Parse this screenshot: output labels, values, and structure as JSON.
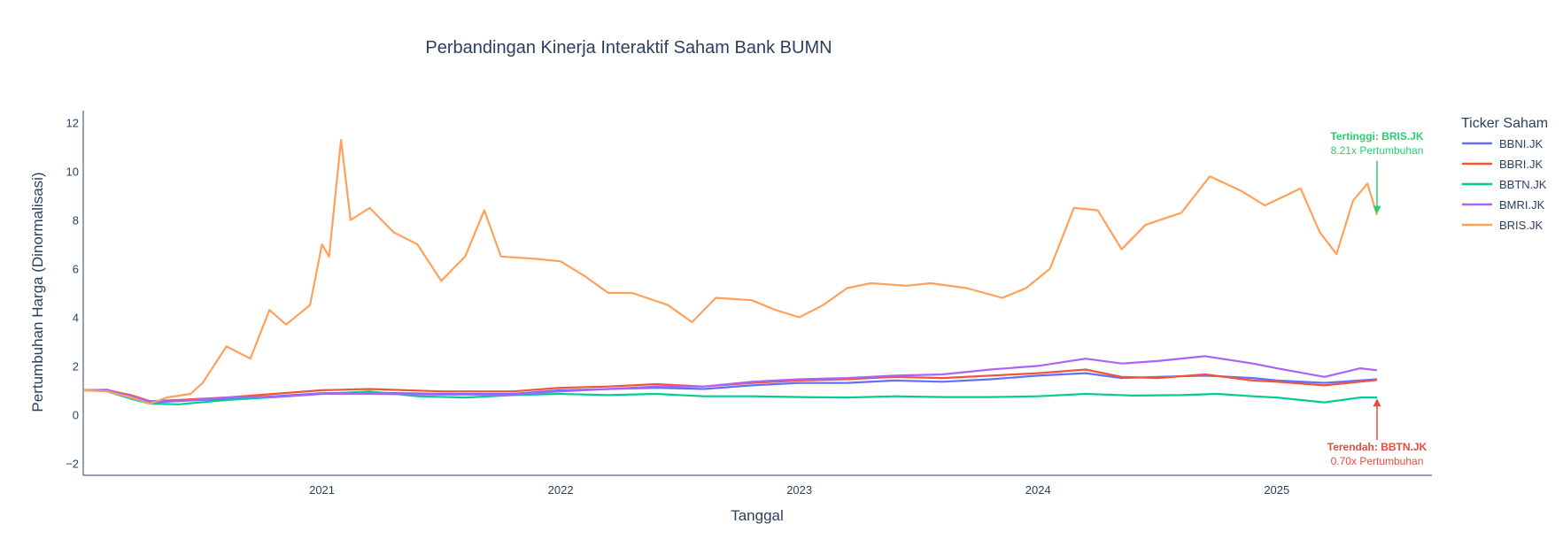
{
  "chart_data": {
    "type": "line",
    "title": "Perbandingan Kinerja Interaktif Saham Bank BUMN",
    "xlabel": "Tanggal",
    "ylabel": "Pertumbuhan Harga (Dinormalisasi)",
    "x_range": [
      2020.0,
      2025.65
    ],
    "ylim": [
      -2.5,
      12.5
    ],
    "y_ticks": [
      -2,
      0,
      2,
      4,
      6,
      8,
      10,
      12
    ],
    "x_ticks": [
      2021,
      2022,
      2023,
      2024,
      2025
    ],
    "x_tick_labels": [
      "2021",
      "2022",
      "2023",
      "2024",
      "2025"
    ],
    "grid": false,
    "legend": {
      "title": "Ticker Saham",
      "placement": "right"
    },
    "series": [
      {
        "name": "BBNI.JK",
        "color": "#636efa",
        "points": [
          [
            2020.0,
            1.0
          ],
          [
            2020.1,
            1.02
          ],
          [
            2020.2,
            0.75
          ],
          [
            2020.28,
            0.5
          ],
          [
            2020.4,
            0.55
          ],
          [
            2020.6,
            0.65
          ],
          [
            2020.8,
            0.75
          ],
          [
            2021.0,
            0.88
          ],
          [
            2021.2,
            0.9
          ],
          [
            2021.5,
            0.85
          ],
          [
            2021.8,
            0.85
          ],
          [
            2022.0,
            1.0
          ],
          [
            2022.2,
            1.05
          ],
          [
            2022.4,
            1.1
          ],
          [
            2022.6,
            1.05
          ],
          [
            2022.8,
            1.2
          ],
          [
            2023.0,
            1.3
          ],
          [
            2023.2,
            1.3
          ],
          [
            2023.4,
            1.4
          ],
          [
            2023.6,
            1.35
          ],
          [
            2023.8,
            1.45
          ],
          [
            2024.0,
            1.6
          ],
          [
            2024.2,
            1.7
          ],
          [
            2024.35,
            1.5
          ],
          [
            2024.5,
            1.55
          ],
          [
            2024.7,
            1.6
          ],
          [
            2024.9,
            1.5
          ],
          [
            2025.0,
            1.4
          ],
          [
            2025.2,
            1.3
          ],
          [
            2025.42,
            1.45
          ]
        ]
      },
      {
        "name": "BBRI.JK",
        "color": "#ef553b",
        "points": [
          [
            2020.0,
            1.0
          ],
          [
            2020.1,
            1.0
          ],
          [
            2020.2,
            0.8
          ],
          [
            2020.28,
            0.55
          ],
          [
            2020.4,
            0.6
          ],
          [
            2020.6,
            0.7
          ],
          [
            2020.8,
            0.85
          ],
          [
            2021.0,
            1.0
          ],
          [
            2021.2,
            1.05
          ],
          [
            2021.5,
            0.95
          ],
          [
            2021.8,
            0.95
          ],
          [
            2022.0,
            1.1
          ],
          [
            2022.2,
            1.15
          ],
          [
            2022.4,
            1.25
          ],
          [
            2022.6,
            1.15
          ],
          [
            2022.8,
            1.3
          ],
          [
            2023.0,
            1.4
          ],
          [
            2023.2,
            1.45
          ],
          [
            2023.4,
            1.55
          ],
          [
            2023.6,
            1.5
          ],
          [
            2023.8,
            1.6
          ],
          [
            2024.0,
            1.7
          ],
          [
            2024.2,
            1.85
          ],
          [
            2024.35,
            1.55
          ],
          [
            2024.5,
            1.5
          ],
          [
            2024.7,
            1.65
          ],
          [
            2024.9,
            1.4
          ],
          [
            2025.0,
            1.35
          ],
          [
            2025.2,
            1.2
          ],
          [
            2025.42,
            1.42
          ]
        ]
      },
      {
        "name": "BBTN.JK",
        "color": "#00cc96",
        "points": [
          [
            2020.0,
            1.0
          ],
          [
            2020.1,
            0.95
          ],
          [
            2020.2,
            0.65
          ],
          [
            2020.28,
            0.45
          ],
          [
            2020.4,
            0.42
          ],
          [
            2020.6,
            0.6
          ],
          [
            2020.8,
            0.72
          ],
          [
            2021.0,
            0.85
          ],
          [
            2021.2,
            0.95
          ],
          [
            2021.4,
            0.75
          ],
          [
            2021.6,
            0.7
          ],
          [
            2021.8,
            0.8
          ],
          [
            2022.0,
            0.85
          ],
          [
            2022.2,
            0.8
          ],
          [
            2022.4,
            0.85
          ],
          [
            2022.6,
            0.75
          ],
          [
            2022.8,
            0.75
          ],
          [
            2023.0,
            0.72
          ],
          [
            2023.2,
            0.7
          ],
          [
            2023.4,
            0.75
          ],
          [
            2023.6,
            0.72
          ],
          [
            2023.8,
            0.72
          ],
          [
            2024.0,
            0.75
          ],
          [
            2024.2,
            0.85
          ],
          [
            2024.4,
            0.78
          ],
          [
            2024.6,
            0.8
          ],
          [
            2024.75,
            0.85
          ],
          [
            2024.9,
            0.75
          ],
          [
            2025.0,
            0.7
          ],
          [
            2025.2,
            0.5
          ],
          [
            2025.35,
            0.7
          ],
          [
            2025.42,
            0.7
          ]
        ]
      },
      {
        "name": "BMRI.JK",
        "color": "#ab63fa",
        "points": [
          [
            2020.0,
            1.0
          ],
          [
            2020.1,
            1.0
          ],
          [
            2020.2,
            0.75
          ],
          [
            2020.28,
            0.55
          ],
          [
            2020.4,
            0.55
          ],
          [
            2020.6,
            0.7
          ],
          [
            2020.8,
            0.72
          ],
          [
            2021.0,
            0.85
          ],
          [
            2021.2,
            0.85
          ],
          [
            2021.5,
            0.82
          ],
          [
            2021.8,
            0.82
          ],
          [
            2022.0,
            0.95
          ],
          [
            2022.2,
            1.05
          ],
          [
            2022.4,
            1.15
          ],
          [
            2022.6,
            1.15
          ],
          [
            2022.8,
            1.35
          ],
          [
            2023.0,
            1.45
          ],
          [
            2023.2,
            1.5
          ],
          [
            2023.4,
            1.6
          ],
          [
            2023.6,
            1.65
          ],
          [
            2023.8,
            1.85
          ],
          [
            2024.0,
            2.0
          ],
          [
            2024.2,
            2.3
          ],
          [
            2024.35,
            2.1
          ],
          [
            2024.5,
            2.2
          ],
          [
            2024.7,
            2.4
          ],
          [
            2024.9,
            2.1
          ],
          [
            2025.0,
            1.9
          ],
          [
            2025.2,
            1.55
          ],
          [
            2025.35,
            1.9
          ],
          [
            2025.42,
            1.82
          ]
        ]
      },
      {
        "name": "BRIS.JK",
        "color": "#ffa15a",
        "points": [
          [
            2020.0,
            1.0
          ],
          [
            2020.1,
            0.95
          ],
          [
            2020.2,
            0.7
          ],
          [
            2020.28,
            0.45
          ],
          [
            2020.35,
            0.7
          ],
          [
            2020.45,
            0.85
          ],
          [
            2020.5,
            1.3
          ],
          [
            2020.6,
            2.8
          ],
          [
            2020.7,
            2.3
          ],
          [
            2020.78,
            4.3
          ],
          [
            2020.85,
            3.7
          ],
          [
            2020.95,
            4.5
          ],
          [
            2021.0,
            7.0
          ],
          [
            2021.03,
            6.5
          ],
          [
            2021.08,
            11.3
          ],
          [
            2021.12,
            8.0
          ],
          [
            2021.2,
            8.5
          ],
          [
            2021.3,
            7.5
          ],
          [
            2021.4,
            7.0
          ],
          [
            2021.5,
            5.5
          ],
          [
            2021.6,
            6.5
          ],
          [
            2021.68,
            8.4
          ],
          [
            2021.75,
            6.5
          ],
          [
            2021.9,
            6.4
          ],
          [
            2022.0,
            6.3
          ],
          [
            2022.1,
            5.7
          ],
          [
            2022.2,
            5.0
          ],
          [
            2022.3,
            5.0
          ],
          [
            2022.45,
            4.5
          ],
          [
            2022.55,
            3.8
          ],
          [
            2022.65,
            4.8
          ],
          [
            2022.8,
            4.7
          ],
          [
            2022.9,
            4.3
          ],
          [
            2023.0,
            4.0
          ],
          [
            2023.1,
            4.5
          ],
          [
            2023.2,
            5.2
          ],
          [
            2023.3,
            5.4
          ],
          [
            2023.45,
            5.3
          ],
          [
            2023.55,
            5.4
          ],
          [
            2023.7,
            5.2
          ],
          [
            2023.85,
            4.8
          ],
          [
            2023.95,
            5.2
          ],
          [
            2024.05,
            6.0
          ],
          [
            2024.15,
            8.5
          ],
          [
            2024.25,
            8.4
          ],
          [
            2024.35,
            6.8
          ],
          [
            2024.45,
            7.8
          ],
          [
            2024.6,
            8.3
          ],
          [
            2024.72,
            9.8
          ],
          [
            2024.85,
            9.2
          ],
          [
            2024.95,
            8.6
          ],
          [
            2025.1,
            9.3
          ],
          [
            2025.18,
            7.5
          ],
          [
            2025.25,
            6.6
          ],
          [
            2025.32,
            8.8
          ],
          [
            2025.38,
            9.5
          ],
          [
            2025.42,
            8.21
          ]
        ]
      }
    ],
    "annotations": [
      {
        "text": "Tertinggi: BRIS.JK",
        "subtext": "8.21x Pertumbuhan",
        "x": 2025.42,
        "y": 8.21,
        "color": "#2ecc71"
      },
      {
        "text": "Terendah: BBTN.JK",
        "subtext": "0.70x Pertumbuhan",
        "x": 2025.42,
        "y": 0.7,
        "color": "#e74c3c"
      }
    ]
  }
}
